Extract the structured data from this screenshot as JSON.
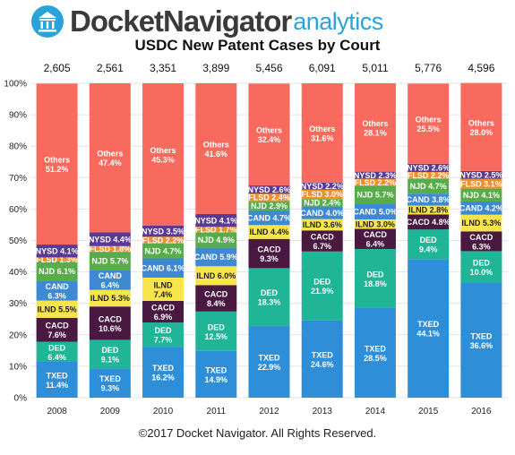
{
  "header": {
    "logo_main": "DocketNavigator",
    "logo_sub": "analytics"
  },
  "footer": "©2017 Docket Navigator. All Rights Reserved.",
  "chart_data": {
    "type": "bar",
    "stacked": true,
    "normalized": true,
    "title": "USDC New Patent Cases by Court",
    "categories": [
      "2008",
      "2009",
      "2010",
      "2011",
      "2012",
      "2013",
      "2014",
      "2015",
      "2016"
    ],
    "totals": [
      "2,605",
      "2,561",
      "3,351",
      "3,899",
      "5,456",
      "6,091",
      "5,011",
      "5,776",
      "4,596"
    ],
    "y_ticks": [
      "0%",
      "10%",
      "20%",
      "30%",
      "40%",
      "50%",
      "60%",
      "70%",
      "80%",
      "90%",
      "100%"
    ],
    "ylim": [
      0,
      100
    ],
    "grid": true,
    "series": [
      {
        "name": "TXED",
        "color": "#2e8fd8",
        "label_color": "#ffffff",
        "values": [
          11.4,
          9.3,
          16.2,
          14.9,
          22.9,
          24.6,
          28.5,
          44.1,
          36.6
        ]
      },
      {
        "name": "DED",
        "color": "#1fb596",
        "label_color": "#ffffff",
        "values": [
          6.4,
          9.1,
          7.7,
          12.5,
          18.3,
          21.9,
          18.8,
          9.4,
          10.0
        ]
      },
      {
        "name": "CACD",
        "color": "#4a1942",
        "label_color": "#ffffff",
        "values": [
          7.6,
          10.6,
          6.9,
          8.4,
          9.3,
          6.7,
          6.4,
          4.8,
          6.3
        ]
      },
      {
        "name": "ILND",
        "color": "#f7e54b",
        "label_color": "#222222",
        "values": [
          5.5,
          5.3,
          7.4,
          6.0,
          4.4,
          3.6,
          3.0,
          2.8,
          5.3
        ]
      },
      {
        "name": "CAND",
        "color": "#3d8ad3",
        "label_color": "#ffffff",
        "values": [
          6.3,
          6.4,
          6.1,
          5.9,
          4.7,
          4.0,
          5.0,
          3.8,
          4.2
        ]
      },
      {
        "name": "NJD",
        "color": "#58ac4a",
        "label_color": "#ffffff",
        "values": [
          6.1,
          5.7,
          4.7,
          4.9,
          2.9,
          2.4,
          5.7,
          4.7,
          4.1
        ]
      },
      {
        "name": "FLSD",
        "color": "#f28e2b",
        "label_color": "#ffffff",
        "values": [
          1.3,
          1.8,
          2.2,
          1.7,
          2.4,
          3.0,
          2.2,
          2.2,
          3.1
        ]
      },
      {
        "name": "NYSD",
        "color": "#5b3a93",
        "label_color": "#ffffff",
        "values": [
          4.1,
          4.4,
          3.5,
          4.1,
          2.6,
          2.2,
          2.3,
          2.6,
          2.5
        ]
      },
      {
        "name": "Others",
        "color": "#f96a5e",
        "label_color": "#ffffff",
        "values": [
          51.2,
          47.4,
          45.3,
          41.6,
          32.4,
          31.6,
          28.1,
          25.5,
          28.0
        ]
      }
    ]
  }
}
